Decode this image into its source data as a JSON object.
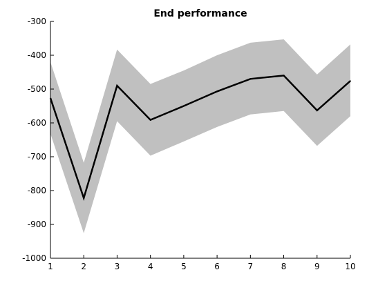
{
  "chart_data": {
    "type": "line",
    "title": "End performance",
    "xlabel": "",
    "ylabel": "",
    "xlim": [
      1,
      10
    ],
    "ylim": [
      -1000,
      -300
    ],
    "x_ticks": [
      1,
      2,
      3,
      4,
      5,
      6,
      7,
      8,
      9,
      10
    ],
    "y_ticks": [
      -1000,
      -900,
      -800,
      -700,
      -600,
      -500,
      -400,
      -300
    ],
    "grid": false,
    "legend": "none",
    "colors": {
      "line": "#000000",
      "band": "#c0c0c0"
    },
    "x": [
      1,
      2,
      3,
      4,
      5,
      6,
      7,
      8,
      9,
      10
    ],
    "series": [
      {
        "values": [
          -527,
          -822,
          -490,
          -591,
          -550,
          -507,
          -470,
          -460,
          -563,
          -476
        ],
        "upper": [
          -420,
          -718,
          -383,
          -485,
          -445,
          -400,
          -363,
          -353,
          -457,
          -368
        ],
        "lower": [
          -632,
          -926,
          -595,
          -697,
          -655,
          -612,
          -575,
          -565,
          -668,
          -580
        ]
      }
    ]
  }
}
